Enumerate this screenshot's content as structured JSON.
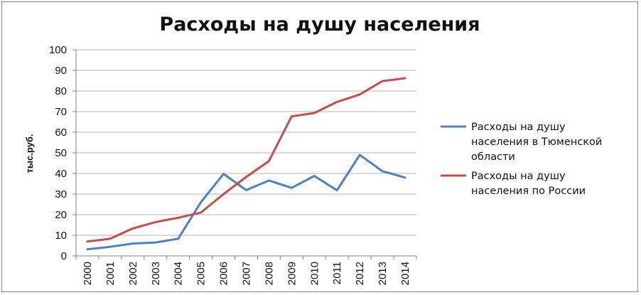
{
  "chart_data": {
    "type": "line",
    "title": "Расходы на душу населения",
    "ylabel": "тыс.руб.",
    "xlabel": "",
    "ylim": [
      0,
      100
    ],
    "yticks": [
      0,
      10,
      20,
      30,
      40,
      50,
      60,
      70,
      80,
      90,
      100
    ],
    "grid": true,
    "legend_position": "right",
    "categories": [
      "2000",
      "2001",
      "2002",
      "2003",
      "2004",
      "2005",
      "2006",
      "2007",
      "2008",
      "2009",
      "2010",
      "2011",
      "2012",
      "2013",
      "2014"
    ],
    "series": [
      {
        "name_lines": [
          "Расходы на душу",
          "населения в Тюменской",
          "области"
        ],
        "color": "#4f81bd",
        "values": [
          3.2,
          4.4,
          6.0,
          6.5,
          8.3,
          26.0,
          39.8,
          31.9,
          36.6,
          33.0,
          38.8,
          31.8,
          49.0,
          41.1,
          38.0
        ]
      },
      {
        "name_lines": [
          "Расходы на душу",
          "населения по России"
        ],
        "color": "#c0504d",
        "values": [
          7.0,
          8.3,
          13.3,
          16.4,
          18.5,
          21.0,
          30.0,
          38.3,
          46.0,
          67.7,
          69.3,
          74.7,
          78.3,
          84.8,
          86.2
        ]
      }
    ]
  }
}
